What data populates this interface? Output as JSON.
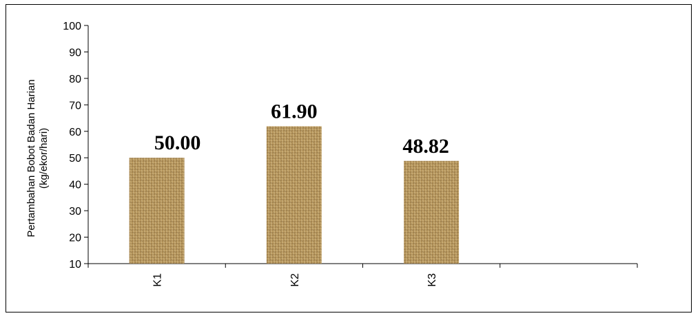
{
  "chart_data": {
    "type": "bar",
    "categories": [
      "K1",
      "K2",
      "K3"
    ],
    "values": [
      50.0,
      61.9,
      48.82
    ],
    "data_labels": [
      "50.00",
      "61.90",
      "48.82"
    ],
    "title": "",
    "xlabel": "",
    "ylabel_line1": "Pertambahan Bobot  Badan Harian",
    "ylabel_line2": "(kg/ekor/hari)",
    "ylim": [
      10,
      100
    ],
    "yticks": [
      "10",
      "20",
      "30",
      "40",
      "50",
      "60",
      "70",
      "80",
      "90",
      "100"
    ],
    "grid": false,
    "legend": "none",
    "bar_fill": "#b8985e"
  }
}
